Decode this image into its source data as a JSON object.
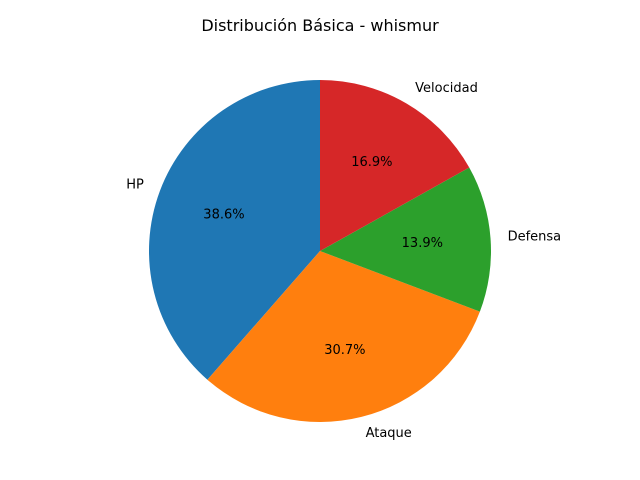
{
  "chart_data": {
    "type": "pie",
    "title": "Distribución Básica - whismur",
    "start_angle_deg": 90,
    "direction": "counterclockwise",
    "slices": [
      {
        "label": "HP",
        "value": 38.6,
        "pct_label": "38.6%",
        "color": "#1f77b4"
      },
      {
        "label": "Ataque",
        "value": 30.7,
        "pct_label": "30.7%",
        "color": "#ff7f0e"
      },
      {
        "label": "Defensa",
        "value": 13.9,
        "pct_label": "13.9%",
        "color": "#2ca02c"
      },
      {
        "label": "Velocidad",
        "value": 16.9,
        "pct_label": "16.9%",
        "color": "#d62728"
      }
    ]
  }
}
